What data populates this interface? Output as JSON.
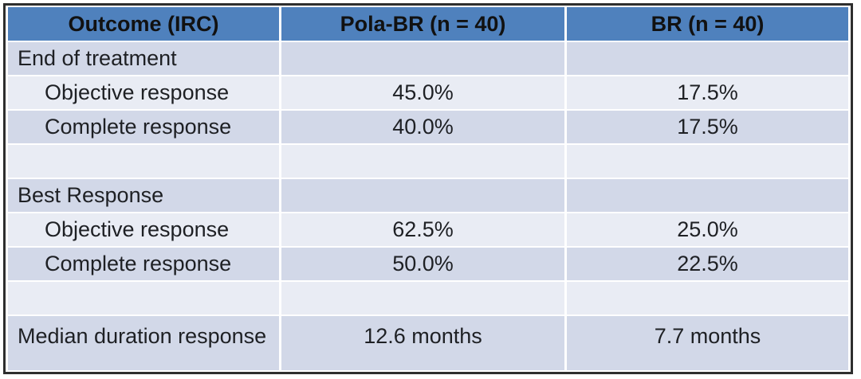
{
  "chart_data": {
    "type": "table",
    "columns": [
      "Outcome (IRC)",
      "Pola-BR (n = 40)",
      "BR (n = 40)"
    ],
    "rows": [
      {
        "label": "End of treatment",
        "indent": false,
        "values": [
          "",
          ""
        ]
      },
      {
        "label": "Objective response",
        "indent": true,
        "values": [
          "45.0%",
          "17.5%"
        ]
      },
      {
        "label": "Complete response",
        "indent": true,
        "values": [
          "40.0%",
          "17.5%"
        ]
      },
      {
        "label": "",
        "indent": false,
        "values": [
          "",
          ""
        ]
      },
      {
        "label": "Best Response",
        "indent": false,
        "values": [
          "",
          ""
        ]
      },
      {
        "label": "Objective response",
        "indent": true,
        "values": [
          "62.5%",
          "25.0%"
        ]
      },
      {
        "label": "Complete response",
        "indent": true,
        "values": [
          "50.0%",
          "22.5%"
        ]
      },
      {
        "label": "",
        "indent": false,
        "values": [
          "",
          ""
        ]
      },
      {
        "label": "Median duration response",
        "indent": false,
        "values": [
          "12.6 months",
          "7.7 months"
        ]
      }
    ]
  },
  "colors": {
    "header_fill": "#4f81bd",
    "band_dark": "#d2d8e8",
    "band_light": "#e9ecf4",
    "header_text": "#111111",
    "body_text": "#1e2024",
    "outer_border": "#2e2e2e",
    "separator": "#ffffff"
  }
}
